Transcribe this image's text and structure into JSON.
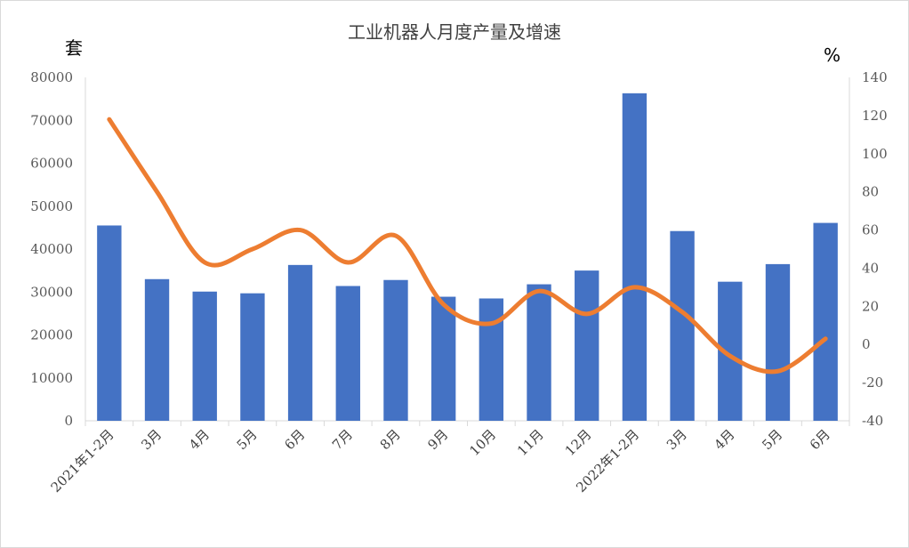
{
  "chart_data": {
    "type": "bar+line",
    "title": "工业机器人月度产量及增速",
    "left_unit": "套",
    "right_unit": "%",
    "categories": [
      "2021年1-2月",
      "3月",
      "4月",
      "5月",
      "6月",
      "7月",
      "8月",
      "9月",
      "10月",
      "11月",
      "12月",
      "2022年1-2月",
      "3月",
      "4月",
      "5月",
      "6月"
    ],
    "series": [
      {
        "kind": "bar",
        "axis": "left",
        "color": "#4472C4",
        "values": [
          45500,
          33000,
          30100,
          29700,
          36300,
          31400,
          32800,
          28900,
          28500,
          31800,
          35000,
          76300,
          44200,
          32400,
          36500,
          46100
        ]
      },
      {
        "kind": "line",
        "axis": "right",
        "color": "#ED7D31",
        "values": [
          118,
          80,
          43,
          50,
          60,
          43,
          57,
          21,
          11,
          28,
          16,
          30,
          17,
          -6,
          -14,
          3
        ]
      }
    ],
    "left_axis": {
      "ylim": [
        0,
        80000
      ],
      "ticks": [
        "0",
        "10000",
        "20000",
        "30000",
        "40000",
        "50000",
        "60000",
        "70000",
        "80000"
      ]
    },
    "right_axis": {
      "ylim": [
        -40,
        140
      ],
      "ticks": [
        "-40",
        "-20",
        "0",
        "20",
        "40",
        "60",
        "80",
        "100",
        "120",
        "140"
      ]
    },
    "grid": false,
    "legend": "none"
  }
}
